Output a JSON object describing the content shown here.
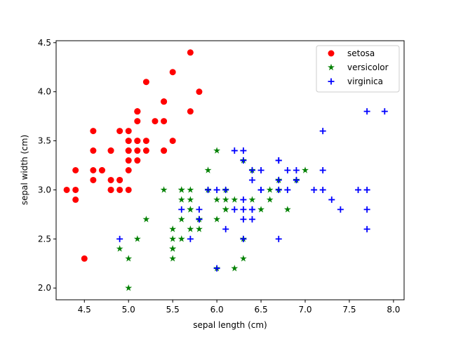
{
  "chart_data": {
    "type": "scatter",
    "xlabel": "sepal length (cm)",
    "ylabel": "sepal width (cm)",
    "xlim": [
      4.18,
      8.12
    ],
    "ylim": [
      1.88,
      4.52
    ],
    "xticks": [
      4.5,
      5.0,
      5.5,
      6.0,
      6.5,
      7.0,
      7.5,
      8.0
    ],
    "xtick_labels": [
      "4.5",
      "5.0",
      "5.5",
      "6.0",
      "6.5",
      "7.0",
      "7.5",
      "8.0"
    ],
    "yticks": [
      2.0,
      2.5,
      3.0,
      3.5,
      4.0,
      4.5
    ],
    "ytick_labels": [
      "2.0",
      "2.5",
      "3.0",
      "3.5",
      "4.0",
      "4.5"
    ],
    "grid": false,
    "legend_position": "top-right",
    "series": [
      {
        "name": "setosa",
        "color": "#ff0000",
        "marker": "circle",
        "points": [
          [
            5.1,
            3.5
          ],
          [
            4.9,
            3.0
          ],
          [
            4.7,
            3.2
          ],
          [
            4.6,
            3.1
          ],
          [
            5.0,
            3.6
          ],
          [
            5.4,
            3.9
          ],
          [
            4.6,
            3.4
          ],
          [
            5.0,
            3.4
          ],
          [
            4.4,
            2.9
          ],
          [
            4.9,
            3.1
          ],
          [
            5.4,
            3.7
          ],
          [
            4.8,
            3.4
          ],
          [
            4.8,
            3.0
          ],
          [
            4.3,
            3.0
          ],
          [
            5.8,
            4.0
          ],
          [
            5.7,
            4.4
          ],
          [
            5.4,
            3.9
          ],
          [
            5.1,
            3.5
          ],
          [
            5.7,
            3.8
          ],
          [
            5.1,
            3.8
          ],
          [
            5.4,
            3.4
          ],
          [
            5.1,
            3.7
          ],
          [
            4.6,
            3.6
          ],
          [
            5.1,
            3.3
          ],
          [
            4.8,
            3.4
          ],
          [
            5.0,
            3.0
          ],
          [
            5.0,
            3.4
          ],
          [
            5.2,
            3.5
          ],
          [
            5.2,
            3.4
          ],
          [
            4.7,
            3.2
          ],
          [
            4.8,
            3.1
          ],
          [
            5.4,
            3.4
          ],
          [
            5.2,
            4.1
          ],
          [
            5.5,
            4.2
          ],
          [
            4.9,
            3.1
          ],
          [
            5.0,
            3.2
          ],
          [
            5.5,
            3.5
          ],
          [
            4.9,
            3.6
          ],
          [
            4.4,
            3.0
          ],
          [
            5.1,
            3.4
          ],
          [
            5.0,
            3.5
          ],
          [
            4.5,
            2.3
          ],
          [
            4.4,
            3.2
          ],
          [
            5.0,
            3.5
          ],
          [
            5.1,
            3.8
          ],
          [
            4.8,
            3.0
          ],
          [
            5.1,
            3.8
          ],
          [
            4.6,
            3.2
          ],
          [
            5.3,
            3.7
          ],
          [
            5.0,
            3.3
          ]
        ]
      },
      {
        "name": "versicolor",
        "color": "#008000",
        "marker": "star",
        "points": [
          [
            7.0,
            3.2
          ],
          [
            6.4,
            3.2
          ],
          [
            6.9,
            3.1
          ],
          [
            5.5,
            2.3
          ],
          [
            6.5,
            2.8
          ],
          [
            5.7,
            2.8
          ],
          [
            6.3,
            3.3
          ],
          [
            4.9,
            2.4
          ],
          [
            6.6,
            2.9
          ],
          [
            5.2,
            2.7
          ],
          [
            5.0,
            2.0
          ],
          [
            5.9,
            3.0
          ],
          [
            6.0,
            2.2
          ],
          [
            6.1,
            2.9
          ],
          [
            5.6,
            2.9
          ],
          [
            6.7,
            3.1
          ],
          [
            5.6,
            3.0
          ],
          [
            5.8,
            2.7
          ],
          [
            6.2,
            2.2
          ],
          [
            5.6,
            2.5
          ],
          [
            5.9,
            3.2
          ],
          [
            6.1,
            2.8
          ],
          [
            6.3,
            2.5
          ],
          [
            6.1,
            2.8
          ],
          [
            6.4,
            2.9
          ],
          [
            6.6,
            3.0
          ],
          [
            6.8,
            2.8
          ],
          [
            6.7,
            3.0
          ],
          [
            6.0,
            2.9
          ],
          [
            5.7,
            2.6
          ],
          [
            5.5,
            2.4
          ],
          [
            5.5,
            2.4
          ],
          [
            5.8,
            2.7
          ],
          [
            6.0,
            2.7
          ],
          [
            5.4,
            3.0
          ],
          [
            6.0,
            3.4
          ],
          [
            6.7,
            3.1
          ],
          [
            6.3,
            2.3
          ],
          [
            5.6,
            3.0
          ],
          [
            5.5,
            2.5
          ],
          [
            5.5,
            2.6
          ],
          [
            6.1,
            3.0
          ],
          [
            5.8,
            2.6
          ],
          [
            5.0,
            2.3
          ],
          [
            5.6,
            2.7
          ],
          [
            5.7,
            3.0
          ],
          [
            5.7,
            2.9
          ],
          [
            6.2,
            2.9
          ],
          [
            5.1,
            2.5
          ],
          [
            5.7,
            2.8
          ]
        ]
      },
      {
        "name": "virginica",
        "color": "#0000ff",
        "marker": "plus",
        "points": [
          [
            6.3,
            3.3
          ],
          [
            5.8,
            2.7
          ],
          [
            7.1,
            3.0
          ],
          [
            6.3,
            2.9
          ],
          [
            6.5,
            3.0
          ],
          [
            7.6,
            3.0
          ],
          [
            4.9,
            2.5
          ],
          [
            7.3,
            2.9
          ],
          [
            6.7,
            2.5
          ],
          [
            7.2,
            3.6
          ],
          [
            6.5,
            3.2
          ],
          [
            6.4,
            2.7
          ],
          [
            6.8,
            3.0
          ],
          [
            5.7,
            2.5
          ],
          [
            5.8,
            2.8
          ],
          [
            6.4,
            3.2
          ],
          [
            6.5,
            3.0
          ],
          [
            7.7,
            3.8
          ],
          [
            7.7,
            2.6
          ],
          [
            6.0,
            2.2
          ],
          [
            6.9,
            3.2
          ],
          [
            5.6,
            2.8
          ],
          [
            7.7,
            2.8
          ],
          [
            6.3,
            2.7
          ],
          [
            6.7,
            3.3
          ],
          [
            7.2,
            3.2
          ],
          [
            6.2,
            2.8
          ],
          [
            6.1,
            3.0
          ],
          [
            6.4,
            2.8
          ],
          [
            7.2,
            3.0
          ],
          [
            7.4,
            2.8
          ],
          [
            7.9,
            3.8
          ],
          [
            6.4,
            2.8
          ],
          [
            6.3,
            2.8
          ],
          [
            6.1,
            2.6
          ],
          [
            7.7,
            3.0
          ],
          [
            6.3,
            3.4
          ],
          [
            6.4,
            3.1
          ],
          [
            6.0,
            3.0
          ],
          [
            6.9,
            3.1
          ],
          [
            6.7,
            3.1
          ],
          [
            6.9,
            3.1
          ],
          [
            5.8,
            2.7
          ],
          [
            6.8,
            3.2
          ],
          [
            6.7,
            3.3
          ],
          [
            6.7,
            3.0
          ],
          [
            6.3,
            2.5
          ],
          [
            6.5,
            3.0
          ],
          [
            6.2,
            3.4
          ],
          [
            5.9,
            3.0
          ]
        ]
      }
    ]
  }
}
